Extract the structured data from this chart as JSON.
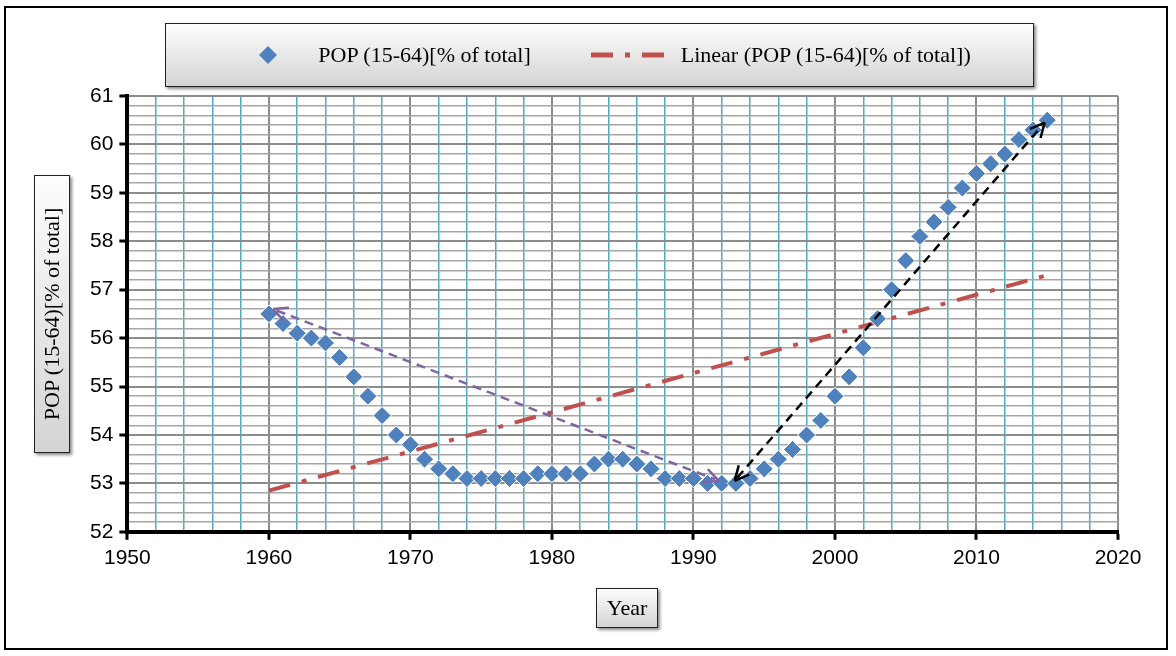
{
  "chart_data": {
    "type": "scatter",
    "xlabel": "Year",
    "ylabel": "POP (15-64)[% of total]",
    "legend": "top",
    "grid": true,
    "marker": "diamond",
    "xlim": [
      1950,
      2020
    ],
    "xticks": [
      1950,
      {
        "value": 1952,
        "label": null
      },
      {
        "value": 1954,
        "label": null
      },
      {
        "value": 1956,
        "label": null
      },
      {
        "value": 1958,
        "label": null
      },
      1960,
      {
        "value": 1962,
        "label": null
      },
      {
        "value": 1964,
        "label": null
      },
      {
        "value": 1966,
        "label": null
      },
      {
        "value": 1968,
        "label": null
      },
      1970,
      {
        "value": 1972,
        "label": null
      },
      {
        "value": 1974,
        "label": null
      },
      {
        "value": 1976,
        "label": null
      },
      {
        "value": 1978,
        "label": null
      },
      1980,
      {
        "value": 1982,
        "label": null
      },
      {
        "value": 1984,
        "label": null
      },
      {
        "value": 1986,
        "label": null
      },
      {
        "value": 1988,
        "label": null
      },
      1990,
      {
        "value": 1992,
        "label": null
      },
      {
        "value": 1994,
        "label": null
      },
      {
        "value": 1996,
        "label": null
      },
      {
        "value": 1998,
        "label": null
      },
      2000,
      {
        "value": 2002,
        "label": null
      },
      {
        "value": 2004,
        "label": null
      },
      {
        "value": 2006,
        "label": null
      },
      {
        "value": 2008,
        "label": null
      },
      2010,
      {
        "value": 2012,
        "label": null
      },
      {
        "value": 2014,
        "label": null
      },
      {
        "value": 2016,
        "label": null
      },
      {
        "value": 2018,
        "label": null
      },
      2020
    ],
    "ylim": [
      52,
      61
    ],
    "yticks": [
      52,
      {
        "value": 52.2,
        "label": null
      },
      {
        "value": 52.4,
        "label": null
      },
      {
        "value": 52.6,
        "label": null
      },
      {
        "value": 52.8,
        "label": null
      },
      53,
      {
        "value": 53.2,
        "label": null
      },
      {
        "value": 53.4,
        "label": null
      },
      {
        "value": 53.6,
        "label": null
      },
      {
        "value": 53.8,
        "label": null
      },
      54,
      {
        "value": 54.2,
        "label": null
      },
      {
        "value": 54.4,
        "label": null
      },
      {
        "value": 54.6,
        "label": null
      },
      {
        "value": 54.8,
        "label": null
      },
      55,
      {
        "value": 55.2,
        "label": null
      },
      {
        "value": 55.4,
        "label": null
      },
      {
        "value": 55.6,
        "label": null
      },
      {
        "value": 55.8,
        "label": null
      },
      56,
      {
        "value": 56.2,
        "label": null
      },
      {
        "value": 56.4,
        "label": null
      },
      {
        "value": 56.6,
        "label": null
      },
      {
        "value": 56.8,
        "label": null
      },
      57,
      {
        "value": 57.2,
        "label": null
      },
      {
        "value": 57.4,
        "label": null
      },
      {
        "value": 57.6,
        "label": null
      },
      {
        "value": 57.8,
        "label": null
      },
      58,
      {
        "value": 58.2,
        "label": null
      },
      {
        "value": 58.4,
        "label": null
      },
      {
        "value": 58.6,
        "label": null
      },
      {
        "value": 58.8,
        "label": null
      },
      59,
      {
        "value": 59.2,
        "label": null
      },
      {
        "value": 59.4,
        "label": null
      },
      {
        "value": 59.6,
        "label": null
      },
      {
        "value": 59.8,
        "label": null
      },
      60,
      {
        "value": 60.2,
        "label": null
      },
      {
        "value": 60.4,
        "label": null
      },
      {
        "value": 60.6,
        "label": null
      },
      {
        "value": 60.8,
        "label": null
      },
      61
    ],
    "series": [
      {
        "name": "POP (15-64)[% of total]",
        "type": "scatter",
        "color": "#4f81bd",
        "x": [
          1960,
          1961,
          1962,
          1963,
          1964,
          1965,
          1966,
          1967,
          1968,
          1969,
          1970,
          1971,
          1972,
          1973,
          1974,
          1975,
          1976,
          1977,
          1978,
          1979,
          1980,
          1981,
          1982,
          1983,
          1984,
          1985,
          1986,
          1987,
          1988,
          1989,
          1990,
          1991,
          1992,
          1993,
          1994,
          1995,
          1996,
          1997,
          1998,
          1999,
          2000,
          2001,
          2002,
          2003,
          2004,
          2005,
          2006,
          2007,
          2008,
          2009,
          2010,
          2011,
          2012,
          2013,
          2014,
          2015
        ],
        "values": [
          56.5,
          56.3,
          56.1,
          56.0,
          55.9,
          55.6,
          55.2,
          54.8,
          54.4,
          54.0,
          53.8,
          53.5,
          53.3,
          53.2,
          53.1,
          53.1,
          53.1,
          53.1,
          53.1,
          53.2,
          53.2,
          53.2,
          53.2,
          53.4,
          53.5,
          53.5,
          53.4,
          53.3,
          53.1,
          53.1,
          53.1,
          53.0,
          53.0,
          53.0,
          53.1,
          53.3,
          53.5,
          53.7,
          54.0,
          54.3,
          54.8,
          55.2,
          55.8,
          56.4,
          57.0,
          57.6,
          58.1,
          58.4,
          58.7,
          59.1,
          59.4,
          59.6,
          59.8,
          60.1,
          60.3,
          60.5
        ]
      },
      {
        "name": "Linear (POP (15-64)[% of total])",
        "type": "line",
        "color": "#c0504d",
        "line_style": "dashdot",
        "marker": "none",
        "x": [
          1960,
          2015
        ],
        "values": [
          52.85,
          57.3
        ]
      }
    ]
  }
}
